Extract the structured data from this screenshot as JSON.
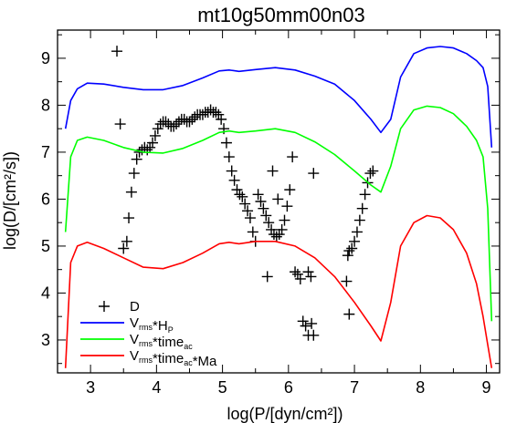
{
  "chart_data": {
    "type": "line",
    "title": "mt10g50mm00n03",
    "xlabel": "log(P/[dyn/cm²])",
    "ylabel": "log(D/[cm²/s])",
    "xlim": [
      2.5,
      9.2
    ],
    "ylim": [
      2.3,
      9.6
    ],
    "xticks": [
      3,
      4,
      5,
      6,
      7,
      8,
      9
    ],
    "yticks": [
      3,
      4,
      5,
      6,
      7,
      8,
      9
    ],
    "grid": false,
    "legend_position": "bottom-left",
    "series": [
      {
        "name": "D",
        "marker": "plus",
        "color": "#000000",
        "x": [
          3.4,
          3.45,
          3.5,
          3.55,
          3.58,
          3.62,
          3.66,
          3.7,
          3.74,
          3.78,
          3.82,
          3.86,
          3.9,
          3.94,
          3.98,
          4.02,
          4.06,
          4.1,
          4.14,
          4.18,
          4.22,
          4.26,
          4.3,
          4.34,
          4.38,
          4.42,
          4.46,
          4.5,
          4.54,
          4.58,
          4.62,
          4.66,
          4.7,
          4.74,
          4.78,
          4.82,
          4.86,
          4.9,
          4.94,
          4.98,
          5.02,
          5.06,
          5.1,
          5.14,
          5.18,
          5.22,
          5.26,
          5.3,
          5.34,
          5.38,
          5.42,
          5.46,
          5.5,
          5.54,
          5.58,
          5.62,
          5.66,
          5.7,
          5.74,
          5.78,
          5.82,
          5.86,
          5.9,
          5.94,
          5.98,
          6.02,
          6.06,
          6.1,
          6.14,
          6.18,
          6.22,
          6.26,
          6.3,
          6.34,
          6.38,
          5.68,
          5.76,
          5.84,
          6.3,
          6.35,
          6.38,
          6.9,
          6.92,
          6.96,
          7.0,
          7.04,
          7.08,
          7.12,
          7.16,
          7.2,
          7.24,
          7.28,
          6.88,
          6.92
        ],
        "y": [
          9.15,
          7.6,
          4.95,
          5.1,
          5.6,
          6.15,
          6.55,
          6.85,
          7.0,
          7.05,
          7.1,
          7.05,
          7.1,
          7.2,
          7.35,
          7.5,
          7.6,
          7.65,
          7.65,
          7.6,
          7.55,
          7.55,
          7.6,
          7.65,
          7.7,
          7.7,
          7.65,
          7.65,
          7.7,
          7.75,
          7.8,
          7.8,
          7.8,
          7.85,
          7.85,
          7.9,
          7.85,
          7.85,
          7.8,
          7.7,
          7.5,
          7.2,
          6.9,
          6.6,
          6.4,
          6.2,
          6.1,
          6.05,
          5.9,
          5.75,
          5.6,
          5.3,
          5.1,
          6.1,
          5.95,
          5.8,
          5.65,
          5.5,
          5.35,
          5.25,
          5.2,
          5.25,
          5.35,
          5.55,
          5.85,
          6.2,
          6.9,
          4.45,
          4.4,
          4.3,
          3.4,
          3.3,
          3.1,
          4.35,
          6.55,
          4.35,
          6.6,
          6.0,
          4.45,
          3.35,
          3.1,
          4.8,
          4.9,
          4.95,
          5.1,
          5.3,
          5.55,
          5.8,
          6.1,
          6.35,
          6.55,
          6.6,
          4.25,
          3.55
        ]
      },
      {
        "name": "V<sub>rms</sub>*H<sub>P</sub>",
        "color": "#0000ff",
        "x": [
          2.62,
          2.7,
          2.8,
          2.95,
          3.2,
          3.5,
          3.8,
          4.1,
          4.4,
          4.7,
          4.95,
          5.1,
          5.25,
          5.5,
          5.8,
          6.1,
          6.4,
          6.7,
          7.0,
          7.25,
          7.4,
          7.55,
          7.7,
          7.9,
          8.1,
          8.3,
          8.5,
          8.7,
          8.85,
          8.95,
          9.02,
          9.08
        ],
        "y": [
          7.5,
          8.1,
          8.35,
          8.47,
          8.45,
          8.38,
          8.33,
          8.33,
          8.42,
          8.58,
          8.73,
          8.75,
          8.72,
          8.76,
          8.8,
          8.75,
          8.62,
          8.45,
          8.1,
          7.7,
          7.42,
          7.7,
          8.6,
          9.1,
          9.22,
          9.25,
          9.22,
          9.1,
          8.95,
          8.8,
          8.4,
          7.1
        ]
      },
      {
        "name": "V<sub>rms</sub>*time<sub>ac</sub>",
        "color": "#00ff00",
        "x": [
          2.62,
          2.7,
          2.8,
          2.95,
          3.2,
          3.5,
          3.8,
          4.1,
          4.4,
          4.7,
          4.95,
          5.1,
          5.25,
          5.5,
          5.8,
          6.1,
          6.4,
          6.7,
          7.0,
          7.25,
          7.4,
          7.55,
          7.7,
          7.9,
          8.1,
          8.3,
          8.5,
          8.7,
          8.85,
          8.95,
          9.02,
          9.08
        ],
        "y": [
          5.3,
          6.9,
          7.25,
          7.32,
          7.25,
          7.1,
          7.0,
          6.98,
          7.08,
          7.25,
          7.42,
          7.45,
          7.42,
          7.45,
          7.5,
          7.42,
          7.22,
          6.95,
          6.6,
          6.3,
          6.15,
          6.7,
          7.5,
          7.9,
          7.98,
          7.95,
          7.82,
          7.55,
          7.25,
          6.9,
          5.8,
          3.4
        ]
      },
      {
        "name": "V<sub>rms</sub>*time<sub>ac</sub>*Ma",
        "color": "#ff0000",
        "x": [
          2.62,
          2.7,
          2.8,
          2.95,
          3.2,
          3.5,
          3.8,
          4.1,
          4.4,
          4.7,
          4.95,
          5.1,
          5.25,
          5.5,
          5.8,
          6.1,
          6.4,
          6.7,
          7.0,
          7.25,
          7.4,
          7.55,
          7.7,
          7.9,
          8.1,
          8.3,
          8.5,
          8.7,
          8.85,
          8.95,
          9.02,
          9.08
        ],
        "y": [
          2.4,
          4.65,
          5.0,
          5.08,
          4.95,
          4.75,
          4.55,
          4.52,
          4.65,
          4.85,
          5.05,
          5.08,
          5.05,
          5.1,
          5.1,
          5.0,
          4.75,
          4.35,
          3.8,
          3.3,
          2.98,
          3.8,
          5.0,
          5.5,
          5.65,
          5.6,
          5.35,
          4.85,
          4.2,
          3.5,
          2.9,
          2.4
        ]
      }
    ]
  }
}
